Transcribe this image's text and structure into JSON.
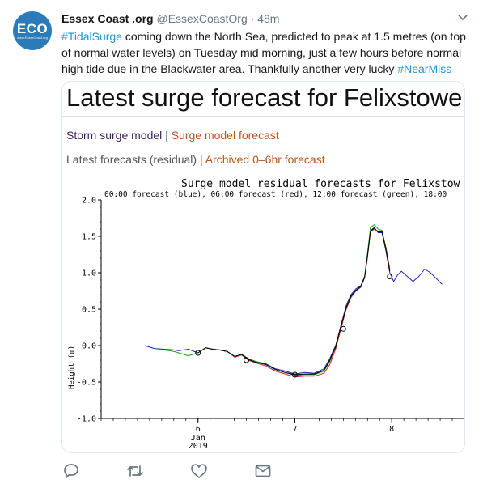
{
  "account": {
    "avatar_text": "ECO",
    "avatar_subtext": "www.EssexCoast.org",
    "name": "Essex Coast .org",
    "handle": "@EssexCoastOrg",
    "separator": "·",
    "time": "48m"
  },
  "tweet": {
    "parts": [
      {
        "text": "#TidalSurge",
        "hashtag": true
      },
      {
        "text": " coming down the North Sea, predicted to peak at 1.5 metres (on top of normal water levels) on Tuesday mid morning, just a few hours before normal high tide due in the Blackwater area. Thankfully another very lucky ",
        "hashtag": false
      },
      {
        "text": "#NearMiss",
        "hashtag": true
      }
    ]
  },
  "card": {
    "title": "Latest surge forecast for Felixstowe",
    "link_storm_model": "Storm surge model",
    "link_separator": " | ",
    "link_model_forecast": "Surge model forecast",
    "latest_forecasts": "Latest forecasts (residual)",
    "link_archived": "Archived 0–6hr forecast"
  },
  "chart_data": {
    "type": "line",
    "title": "Surge model residual forecasts for Felixstow",
    "subtitle": "00:00 forecast (blue), 06:00 forecast (red), 12:00 forecast (green), 18:00",
    "ylabel": "Height (m)",
    "xlabel": "",
    "ylim": [
      -1.0,
      2.0
    ],
    "xlim": [
      5.0,
      8.75
    ],
    "y_ticks": [
      "2.0",
      "1.5",
      "1.0",
      "0.5",
      "0.0",
      "-0.5",
      "-1.0"
    ],
    "x_ticks": [
      {
        "value": 6,
        "label": "6",
        "sub": [
          "Jan",
          "2019"
        ]
      },
      {
        "value": 7,
        "label": "7",
        "sub": []
      },
      {
        "value": 8,
        "label": "8",
        "sub": []
      }
    ],
    "grid": false,
    "colors": {
      "blue": "#1f1fc0",
      "red": "#d02020",
      "green": "#18a018",
      "black": "#000000"
    },
    "series": [
      {
        "name": "00:00 forecast (blue)",
        "color": "#1f1fc0",
        "x": [
          5.45,
          5.55,
          5.65,
          5.75,
          5.8,
          5.9,
          6.0,
          6.08,
          6.15,
          6.22,
          6.3,
          6.38,
          6.45,
          6.52,
          6.6,
          6.7,
          6.8,
          6.9,
          7.0,
          7.1,
          7.2,
          7.3,
          7.36,
          7.42,
          7.48,
          7.53,
          7.58,
          7.63,
          7.68,
          7.72,
          7.75,
          7.78,
          7.82,
          7.86,
          7.9,
          7.94,
          7.98,
          8.02,
          8.06,
          8.1,
          8.16,
          8.22,
          8.28,
          8.34,
          8.4,
          8.46,
          8.52
        ],
        "y": [
          0.0,
          -0.04,
          -0.05,
          -0.06,
          -0.07,
          -0.05,
          -0.1,
          -0.03,
          -0.05,
          -0.06,
          -0.08,
          -0.15,
          -0.12,
          -0.18,
          -0.22,
          -0.25,
          -0.32,
          -0.35,
          -0.39,
          -0.37,
          -0.38,
          -0.32,
          -0.18,
          0.0,
          0.3,
          0.55,
          0.7,
          0.78,
          0.82,
          0.95,
          1.25,
          1.58,
          1.62,
          1.55,
          1.55,
          1.3,
          1.0,
          0.88,
          0.97,
          1.02,
          0.95,
          0.88,
          0.95,
          1.05,
          1.0,
          0.92,
          0.84
        ]
      },
      {
        "name": "06:00 forecast (red)",
        "color": "#d02020",
        "x": [
          6.0,
          6.08,
          6.15,
          6.22,
          6.3,
          6.38,
          6.45,
          6.52,
          6.6,
          6.7,
          6.8,
          6.9,
          7.0,
          7.1,
          7.2,
          7.3,
          7.36,
          7.42,
          7.48,
          7.53,
          7.58,
          7.63,
          7.68,
          7.72,
          7.75,
          7.78,
          7.82,
          7.86,
          7.9,
          7.94,
          7.98
        ],
        "y": [
          -0.1,
          -0.03,
          -0.05,
          -0.06,
          -0.08,
          -0.16,
          -0.13,
          -0.2,
          -0.24,
          -0.28,
          -0.35,
          -0.39,
          -0.43,
          -0.42,
          -0.42,
          -0.38,
          -0.26,
          -0.05,
          0.25,
          0.5,
          0.66,
          0.75,
          0.8,
          0.93,
          1.22,
          1.56,
          1.6,
          1.57,
          1.57,
          1.35,
          1.05
        ]
      },
      {
        "name": "12:00 forecast (green)",
        "color": "#18a018",
        "x": [
          5.55,
          5.65,
          5.75,
          5.8,
          5.9,
          6.0,
          6.08,
          6.15,
          6.22,
          6.3,
          6.38,
          6.45,
          6.52,
          6.6,
          6.7,
          6.8,
          6.9,
          7.0,
          7.1,
          7.2,
          7.3,
          7.36,
          7.42,
          7.48,
          7.53,
          7.58,
          7.63,
          7.68,
          7.72,
          7.75,
          7.78,
          7.82,
          7.86,
          7.9,
          7.94,
          7.98
        ],
        "y": [
          -0.04,
          -0.06,
          -0.08,
          -0.1,
          -0.14,
          -0.1,
          -0.03,
          -0.05,
          -0.06,
          -0.08,
          -0.15,
          -0.12,
          -0.18,
          -0.22,
          -0.26,
          -0.33,
          -0.37,
          -0.41,
          -0.4,
          -0.4,
          -0.35,
          -0.22,
          -0.02,
          0.28,
          0.52,
          0.68,
          0.76,
          0.81,
          0.94,
          1.28,
          1.62,
          1.66,
          1.6,
          1.58,
          1.33,
          1.02
        ]
      },
      {
        "name": "",
        "color": "#000000",
        "x": [
          6.0,
          6.08,
          6.15,
          6.22,
          6.3,
          6.38,
          6.45,
          6.52,
          6.6,
          6.7,
          6.8,
          6.9,
          7.0,
          7.1,
          7.2,
          7.3,
          7.36,
          7.42,
          7.48,
          7.53,
          7.58,
          7.63,
          7.68,
          7.72,
          7.75,
          7.78,
          7.82,
          7.86,
          7.9,
          7.94,
          7.98
        ],
        "y": [
          -0.1,
          -0.03,
          -0.05,
          -0.06,
          -0.08,
          -0.15,
          -0.12,
          -0.19,
          -0.23,
          -0.26,
          -0.33,
          -0.37,
          -0.4,
          -0.39,
          -0.39,
          -0.34,
          -0.2,
          -0.02,
          0.28,
          0.52,
          0.68,
          0.76,
          0.81,
          0.94,
          1.24,
          1.57,
          1.61,
          1.56,
          1.56,
          1.32,
          1.02
        ]
      }
    ],
    "markers": [
      {
        "x": 6.0,
        "y": -0.1
      },
      {
        "x": 6.5,
        "y": -0.2
      },
      {
        "x": 7.0,
        "y": -0.4
      },
      {
        "x": 7.5,
        "y": 0.23
      },
      {
        "x": 7.98,
        "y": 0.95
      }
    ]
  },
  "actions": {
    "reply": "reply-icon",
    "retweet": "retweet-icon",
    "like": "like-icon",
    "dm": "message-icon"
  }
}
